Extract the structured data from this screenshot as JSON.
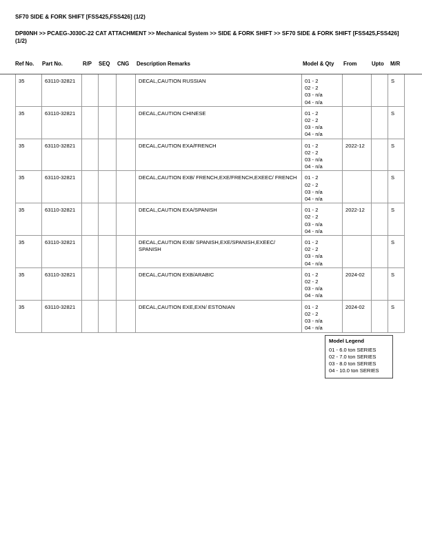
{
  "title": "SF70 SIDE & FORK SHIFT [FSS425,FSS426] (1/2)",
  "breadcrumb": "DP80NH >> PCAEG-J030C-22 CAT ATTACHMENT >> Mechanical System >> SIDE & FORK SHIFT >> SF70 SIDE & FORK SHIFT [FSS425,FSS426] (1/2)",
  "columns": [
    "Ref No.",
    "Part No.",
    "R/P",
    "SEQ",
    "CNG",
    "Description Remarks",
    "Model & Qty",
    "From",
    "Upto",
    "M/R"
  ],
  "rows": [
    {
      "ref": "35",
      "part": "63110-32821",
      "rp": "",
      "seq": "",
      "cng": "",
      "desc": "DECAL,CAUTION RUSSIAN",
      "qty": [
        "01 - 2",
        "02 - 2",
        "03 - n/a",
        "04 - n/a"
      ],
      "from": "",
      "upto": "",
      "mr": "S"
    },
    {
      "ref": "35",
      "part": "63110-32821",
      "rp": "",
      "seq": "",
      "cng": "",
      "desc": "DECAL,CAUTION CHINESE",
      "qty": [
        "01 - 2",
        "02 - 2",
        "03 - n/a",
        "04 - n/a"
      ],
      "from": "",
      "upto": "",
      "mr": "S"
    },
    {
      "ref": "35",
      "part": "63110-32821",
      "rp": "",
      "seq": "",
      "cng": "",
      "desc": "DECAL,CAUTION EXA/FRENCH",
      "qty": [
        "01 - 2",
        "02 - 2",
        "03 - n/a",
        "04 - n/a"
      ],
      "from": "2022-12",
      "upto": "",
      "mr": "S"
    },
    {
      "ref": "35",
      "part": "63110-32821",
      "rp": "",
      "seq": "",
      "cng": "",
      "desc": "DECAL,CAUTION EXB/ FRENCH,EXE/FRENCH,EXEEC/ FRENCH",
      "qty": [
        "01 - 2",
        "02 - 2",
        "03 - n/a",
        "04 - n/a"
      ],
      "from": "",
      "upto": "",
      "mr": "S"
    },
    {
      "ref": "35",
      "part": "63110-32821",
      "rp": "",
      "seq": "",
      "cng": "",
      "desc": "DECAL,CAUTION EXA/SPANISH",
      "qty": [
        "01 - 2",
        "02 - 2",
        "03 - n/a",
        "04 - n/a"
      ],
      "from": "2022-12",
      "upto": "",
      "mr": "S"
    },
    {
      "ref": "35",
      "part": "63110-32821",
      "rp": "",
      "seq": "",
      "cng": "",
      "desc": "DECAL,CAUTION EXB/ SPANISH,EXE/SPANISH,EXEEC/ SPANISH",
      "qty": [
        "01 - 2",
        "02 - 2",
        "03 - n/a",
        "04 - n/a"
      ],
      "from": "",
      "upto": "",
      "mr": "S"
    },
    {
      "ref": "35",
      "part": "63110-32821",
      "rp": "",
      "seq": "",
      "cng": "",
      "desc": "DECAL,CAUTION EXB/ARABIC",
      "qty": [
        "01 - 2",
        "02 - 2",
        "03 - n/a",
        "04 - n/a"
      ],
      "from": "2024-02",
      "upto": "",
      "mr": "S"
    },
    {
      "ref": "35",
      "part": "63110-32821",
      "rp": "",
      "seq": "",
      "cng": "",
      "desc": "DECAL,CAUTION EXE,EXN/ ESTONIAN",
      "qty": [
        "01 - 2",
        "02 - 2",
        "03 - n/a",
        "04 - n/a"
      ],
      "from": "2024-02",
      "upto": "",
      "mr": "S"
    }
  ],
  "legend": {
    "title": "Model Legend",
    "items": [
      "01 - 6.0 ton SERIES",
      "02 - 7.0 ton SERIES",
      "03 - 8.0 ton SERIES",
      "04 - 10.0 ton SERIES"
    ]
  }
}
